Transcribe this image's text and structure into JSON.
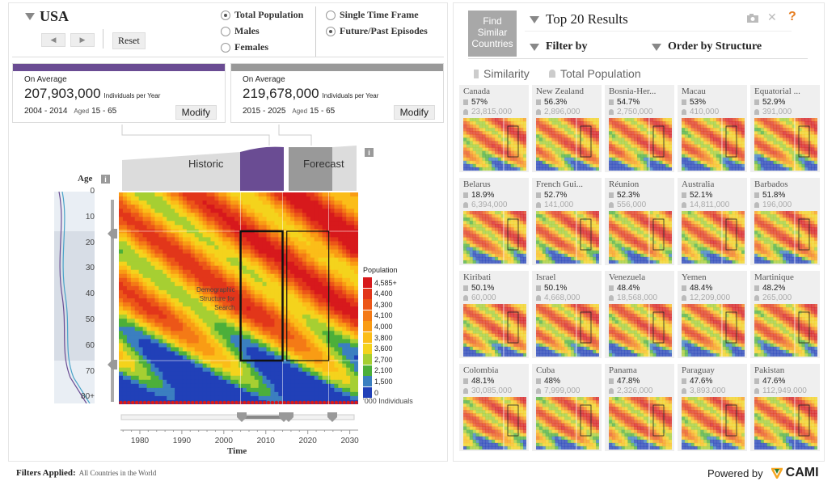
{
  "header": {
    "country": "USA",
    "reset_label": "Reset",
    "prev_icon": "arrow-left-icon",
    "next_icon": "arrow-right-icon"
  },
  "options": {
    "population": [
      {
        "label": "Total Population",
        "selected": true
      },
      {
        "label": "Males",
        "selected": false
      },
      {
        "label": "Females",
        "selected": false
      }
    ],
    "timeframe": [
      {
        "label": "Single Time Frame",
        "selected": false
      },
      {
        "label": "Future/Past Episodes",
        "selected": true
      }
    ]
  },
  "cards": [
    {
      "label": "On Average",
      "value": "207,903,000",
      "unit": "Individuals per Year",
      "range": "2004 - 2014",
      "aged_label": "Aged",
      "aged": "15 - 65",
      "modify": "Modify",
      "color": "#6a4c93"
    },
    {
      "label": "On Average",
      "value": "219,678,000",
      "unit": "Individuals per Year",
      "range": "2015 - 2025",
      "aged_label": "Aged",
      "aged": "15 - 65",
      "modify": "Modify",
      "color": "#999999"
    }
  ],
  "chart": {
    "historic_label": "Historic",
    "forecast_label": "Forecast",
    "age_title": "Age",
    "time_title": "Time",
    "annotation": [
      "Demographic",
      "Structure for",
      "Search"
    ],
    "legend_title": "Population",
    "legend_footer": "'000 Individuals",
    "info_icon": "info-icon"
  },
  "chart_data": {
    "type": "heatmap",
    "x_label": "Time",
    "y_label": "Age",
    "x_ticks": [
      "1980",
      "1990",
      "2000",
      "2010",
      "2020",
      "2030"
    ],
    "y_ticks": [
      "0",
      "10",
      "20",
      "30",
      "40",
      "50",
      "60",
      "70",
      "80+"
    ],
    "xlim": [
      1975,
      2032
    ],
    "ylim": [
      0,
      80
    ],
    "legend": [
      {
        "label": "4,585+",
        "color": "#d7191c"
      },
      {
        "label": "4,400",
        "color": "#e2361a"
      },
      {
        "label": "4,300",
        "color": "#ec5618"
      },
      {
        "label": "4,100",
        "color": "#f47a16"
      },
      {
        "label": "4,000",
        "color": "#f99c14"
      },
      {
        "label": "3,800",
        "color": "#fbbd18"
      },
      {
        "label": "3,600",
        "color": "#f4d31c"
      },
      {
        "label": "2,700",
        "color": "#a6cf32"
      },
      {
        "label": "2,100",
        "color": "#4caf3a"
      },
      {
        "label": "1,500",
        "color": "#3b7fc0"
      },
      {
        "label": "0",
        "color": "#2140b8"
      }
    ],
    "selections": [
      {
        "x": [
          2004,
          2014
        ],
        "y": [
          15,
          65
        ]
      },
      {
        "x": [
          2015,
          2025
        ],
        "y": [
          15,
          65
        ]
      }
    ]
  },
  "right": {
    "find_label": [
      "Find",
      "Similar",
      "Countries"
    ],
    "title": "Top 20 Results",
    "filter_label": "Filter by",
    "order_label": "Order by Structure",
    "sub_similarity": "Similarity",
    "sub_population": "Total Population",
    "tools": [
      "camera-icon",
      "close-icon",
      "help-icon"
    ],
    "help_glyph": "?",
    "results": [
      {
        "name": "Canada",
        "pct": "57%",
        "pop": "23,815,000"
      },
      {
        "name": "New Zealand",
        "pct": "56.3%",
        "pop": "2,896,000"
      },
      {
        "name": "Bosnia-Her...",
        "pct": "54.7%",
        "pop": "2,750,000"
      },
      {
        "name": "Macau",
        "pct": "53%",
        "pop": "410,000"
      },
      {
        "name": "Equatorial ...",
        "pct": "52.9%",
        "pop": "391,000"
      },
      {
        "name": "Belarus",
        "pct": "18.9%",
        "pop": "6,394,000"
      },
      {
        "name": "French Gui...",
        "pct": "52.7%",
        "pop": "141,000"
      },
      {
        "name": "Réunion",
        "pct": "52.3%",
        "pop": "556,000"
      },
      {
        "name": "Australia",
        "pct": "52.1%",
        "pop": "14,811,000"
      },
      {
        "name": "Barbados",
        "pct": "51.8%",
        "pop": "196,000"
      },
      {
        "name": "Kiribati",
        "pct": "50.1%",
        "pop": "60,000"
      },
      {
        "name": "Israel",
        "pct": "50.1%",
        "pop": "4,668,000"
      },
      {
        "name": "Venezuela",
        "pct": "48.4%",
        "pop": "18,568,000"
      },
      {
        "name": "Yemen",
        "pct": "48.4%",
        "pop": "12,209,000"
      },
      {
        "name": "Martinique",
        "pct": "48.2%",
        "pop": "265,000"
      },
      {
        "name": "Colombia",
        "pct": "48.1%",
        "pop": "30,085,000"
      },
      {
        "name": "Cuba",
        "pct": "48%",
        "pop": "7,999,000"
      },
      {
        "name": "Panama",
        "pct": "47.8%",
        "pop": "2,326,000"
      },
      {
        "name": "Paraguay",
        "pct": "47.6%",
        "pop": "3,893,000"
      },
      {
        "name": "Pakistan",
        "pct": "47.6%",
        "pop": "112,949,000"
      }
    ]
  },
  "footer": {
    "filters_label": "Filters Applied:",
    "filters_value": "All Countries in the World",
    "powered": "Powered by",
    "brand": "CAMI"
  }
}
